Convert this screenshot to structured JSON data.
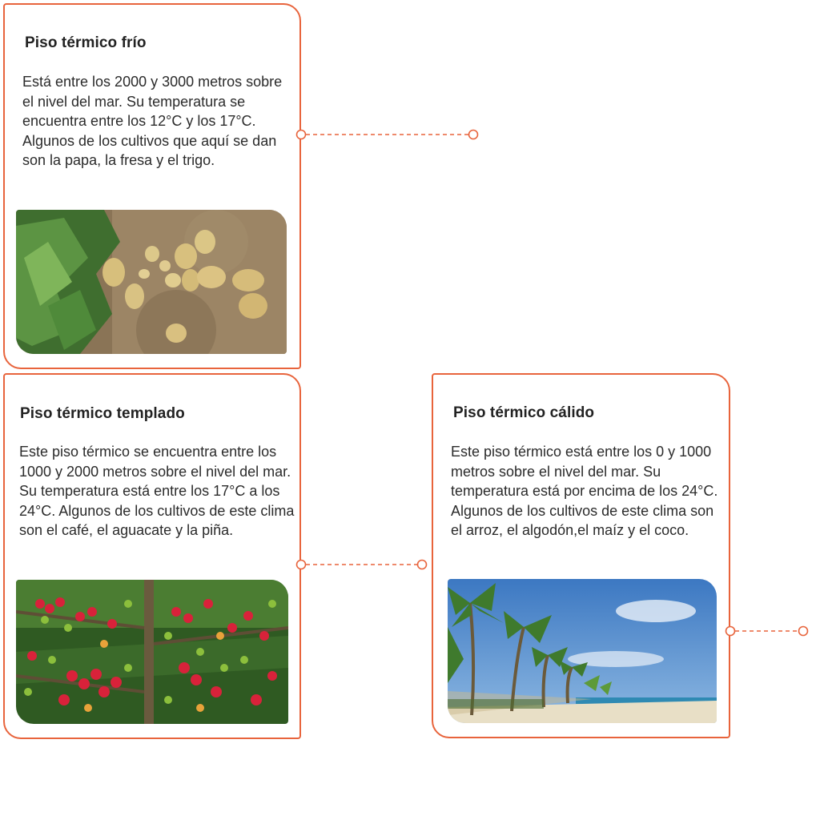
{
  "cards": [
    {
      "title": "Piso térmico frío",
      "text": "Está entre los 2000 y 3000 metros sobre el nivel del mar. Su temperatura se encuentra entre los 12°C y los 17°C. Algunos de los cultivos que aquí se dan son la papa, la fresa y el trigo.",
      "image": "potato-field-photo"
    },
    {
      "title": "Piso térmico templado",
      "text": "Este piso térmico se encuentra entre los 1000 y 2000 metros sobre el nivel del mar. Su temperatura está entre los 17°C a los 24°C. Algunos de los cultivos de este clima son el café, el aguacate y la piña.",
      "image": "coffee-cherries-photo"
    },
    {
      "title": "Piso térmico cálido",
      "text": "Este piso térmico está entre los 0 y 1000 metros sobre el nivel del mar. Su temperatura está por encima de los 24°C. Algunos de los cultivos de este clima son el arroz, el algodón,el maíz y el coco.",
      "image": "palm-beach-photo"
    }
  ],
  "colors": {
    "accent": "#e8643c",
    "text": "#2b2b2b"
  }
}
